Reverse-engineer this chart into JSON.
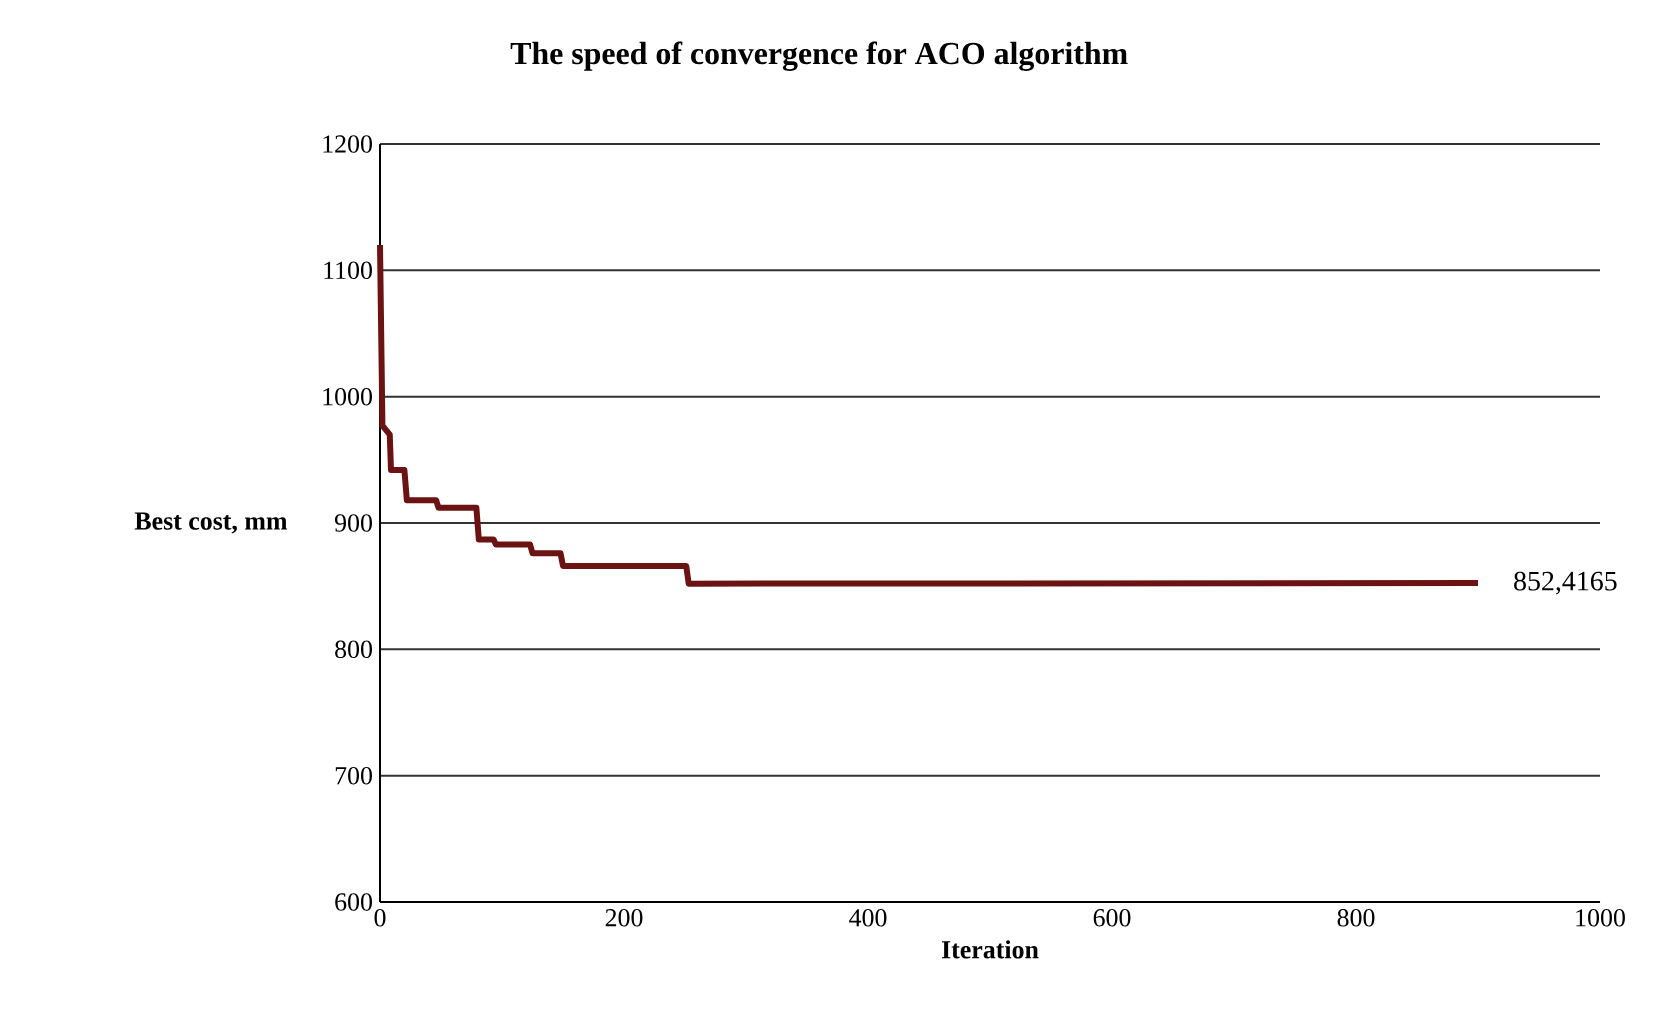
{
  "chart_data": {
    "type": "line",
    "title": "The speed of convergence for ACO algorithm",
    "xlabel": "Iteration",
    "ylabel": "Best cost, mm",
    "xlim": [
      0,
      1000
    ],
    "xticks": [
      0,
      200,
      400,
      600,
      800,
      1000
    ],
    "ylim": [
      600,
      1200
    ],
    "yticks": [
      600,
      700,
      800,
      900,
      1000,
      1100,
      1200
    ],
    "grid": "y",
    "marker": "none",
    "line_style": "solid",
    "series": [
      {
        "color": "#6b1212",
        "x": [
          0,
          2,
          8,
          9,
          20,
          22,
          46,
          48,
          79,
          81,
          93,
          95,
          123,
          125,
          148,
          150,
          251,
          253,
          900
        ],
        "values": [
          1120,
          977,
          970,
          942,
          942,
          918,
          918,
          912,
          912,
          887,
          887,
          883,
          883,
          876,
          876,
          866,
          866,
          852,
          852.4165
        ]
      }
    ],
    "annotations": [
      {
        "text": "852,4165",
        "x": 900,
        "y": 852.4165
      }
    ]
  }
}
